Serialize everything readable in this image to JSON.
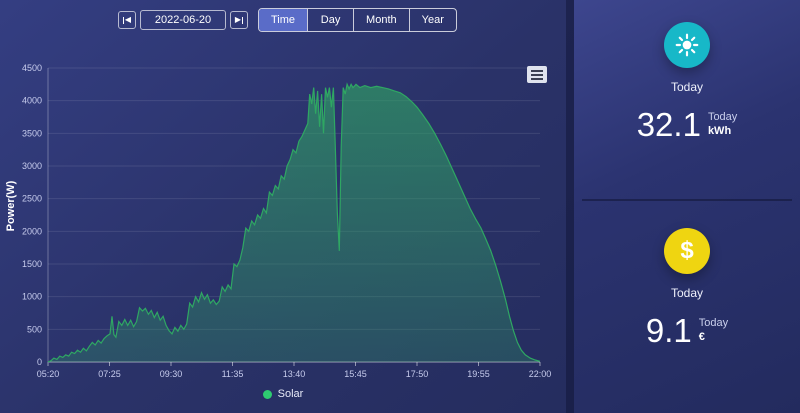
{
  "toolbar": {
    "prev_icon": "◀",
    "next_icon": "▶",
    "date": "2022-06-20",
    "tab_active_color": "#5a6cc8",
    "tabs": [
      {
        "label": "Time",
        "active": true
      },
      {
        "label": "Day",
        "active": false
      },
      {
        "label": "Month",
        "active": false
      },
      {
        "label": "Year",
        "active": false
      }
    ]
  },
  "chart_data": {
    "type": "area",
    "title": "",
    "ylabel": "Power(W)",
    "ylim": [
      0,
      4500
    ],
    "yticks": [
      0,
      500,
      1000,
      1500,
      2000,
      2500,
      3000,
      3500,
      4000,
      4500
    ],
    "xtick_labels": [
      "05:20",
      "07:25",
      "09:30",
      "11:35",
      "13:40",
      "15:45",
      "17:50",
      "19:55",
      "22:00"
    ],
    "x_range_minutes": [
      320,
      1320
    ],
    "grid": true,
    "legend": {
      "label": "Solar",
      "color": "#2ecc71",
      "position": "bottom"
    },
    "series": [
      {
        "name": "Solar",
        "color": "#2fa763",
        "points": [
          [
            320,
            0
          ],
          [
            326,
            20
          ],
          [
            332,
            60
          ],
          [
            338,
            40
          ],
          [
            344,
            90
          ],
          [
            350,
            70
          ],
          [
            356,
            110
          ],
          [
            362,
            90
          ],
          [
            368,
            150
          ],
          [
            374,
            130
          ],
          [
            380,
            180
          ],
          [
            386,
            150
          ],
          [
            392,
            210
          ],
          [
            398,
            170
          ],
          [
            404,
            240
          ],
          [
            410,
            300
          ],
          [
            416,
            260
          ],
          [
            422,
            330
          ],
          [
            428,
            290
          ],
          [
            434,
            360
          ],
          [
            440,
            400
          ],
          [
            446,
            430
          ],
          [
            450,
            700
          ],
          [
            454,
            420
          ],
          [
            458,
            380
          ],
          [
            464,
            620
          ],
          [
            470,
            560
          ],
          [
            476,
            650
          ],
          [
            482,
            560
          ],
          [
            488,
            640
          ],
          [
            494,
            540
          ],
          [
            500,
            620
          ],
          [
            506,
            830
          ],
          [
            512,
            780
          ],
          [
            518,
            820
          ],
          [
            524,
            730
          ],
          [
            530,
            790
          ],
          [
            536,
            680
          ],
          [
            542,
            760
          ],
          [
            548,
            640
          ],
          [
            554,
            700
          ],
          [
            560,
            560
          ],
          [
            566,
            480
          ],
          [
            572,
            430
          ],
          [
            578,
            530
          ],
          [
            584,
            470
          ],
          [
            590,
            560
          ],
          [
            596,
            500
          ],
          [
            602,
            580
          ],
          [
            608,
            900
          ],
          [
            614,
            840
          ],
          [
            620,
            1000
          ],
          [
            626,
            920
          ],
          [
            632,
            1060
          ],
          [
            638,
            960
          ],
          [
            644,
            1030
          ],
          [
            650,
            900
          ],
          [
            656,
            950
          ],
          [
            662,
            880
          ],
          [
            668,
            930
          ],
          [
            674,
            1150
          ],
          [
            680,
            1080
          ],
          [
            686,
            1180
          ],
          [
            692,
            1120
          ],
          [
            698,
            1500
          ],
          [
            704,
            1460
          ],
          [
            710,
            1560
          ],
          [
            716,
            1750
          ],
          [
            722,
            2050
          ],
          [
            728,
            2000
          ],
          [
            734,
            2160
          ],
          [
            740,
            2100
          ],
          [
            746,
            2250
          ],
          [
            752,
            2200
          ],
          [
            758,
            2350
          ],
          [
            764,
            2280
          ],
          [
            770,
            2600
          ],
          [
            776,
            2550
          ],
          [
            782,
            2700
          ],
          [
            788,
            2650
          ],
          [
            794,
            2850
          ],
          [
            800,
            2800
          ],
          [
            806,
            3000
          ],
          [
            812,
            3100
          ],
          [
            818,
            3250
          ],
          [
            824,
            3200
          ],
          [
            830,
            3380
          ],
          [
            836,
            3450
          ],
          [
            842,
            3550
          ],
          [
            848,
            3650
          ],
          [
            852,
            4100
          ],
          [
            856,
            3950
          ],
          [
            860,
            4200
          ],
          [
            864,
            3800
          ],
          [
            868,
            4150
          ],
          [
            872,
            3600
          ],
          [
            876,
            4100
          ],
          [
            880,
            3500
          ],
          [
            884,
            4200
          ],
          [
            888,
            4050
          ],
          [
            892,
            4200
          ],
          [
            896,
            3900
          ],
          [
            900,
            4200
          ],
          [
            904,
            3300
          ],
          [
            908,
            2300
          ],
          [
            912,
            1700
          ],
          [
            916,
            3300
          ],
          [
            920,
            4200
          ],
          [
            924,
            4100
          ],
          [
            928,
            4250
          ],
          [
            932,
            4180
          ],
          [
            936,
            4250
          ],
          [
            940,
            4200
          ],
          [
            946,
            4250
          ],
          [
            954,
            4200
          ],
          [
            964,
            4230
          ],
          [
            976,
            4200
          ],
          [
            988,
            4220
          ],
          [
            1000,
            4200
          ],
          [
            1012,
            4180
          ],
          [
            1024,
            4150
          ],
          [
            1036,
            4120
          ],
          [
            1048,
            4060
          ],
          [
            1060,
            3980
          ],
          [
            1070,
            3900
          ],
          [
            1082,
            3780
          ],
          [
            1094,
            3650
          ],
          [
            1106,
            3500
          ],
          [
            1118,
            3330
          ],
          [
            1130,
            3150
          ],
          [
            1142,
            2950
          ],
          [
            1154,
            2750
          ],
          [
            1166,
            2550
          ],
          [
            1178,
            2350
          ],
          [
            1190,
            2180
          ],
          [
            1200,
            2050
          ],
          [
            1210,
            1880
          ],
          [
            1220,
            1700
          ],
          [
            1230,
            1480
          ],
          [
            1240,
            1230
          ],
          [
            1250,
            950
          ],
          [
            1258,
            700
          ],
          [
            1266,
            480
          ],
          [
            1274,
            300
          ],
          [
            1282,
            180
          ],
          [
            1290,
            110
          ],
          [
            1300,
            60
          ],
          [
            1310,
            30
          ],
          [
            1320,
            10
          ]
        ]
      }
    ]
  },
  "cards": [
    {
      "icon": "sun-icon",
      "icon_bg": "#17b8c8",
      "title": "Today",
      "value": "32.1",
      "unit_top": "Today",
      "unit_bottom": "kWh"
    },
    {
      "icon": "dollar-icon",
      "icon_bg": "#efd511",
      "icon_glyph": "$",
      "title": "Today",
      "value": "9.1",
      "unit_top": "Today",
      "unit_bottom": "€"
    }
  ]
}
